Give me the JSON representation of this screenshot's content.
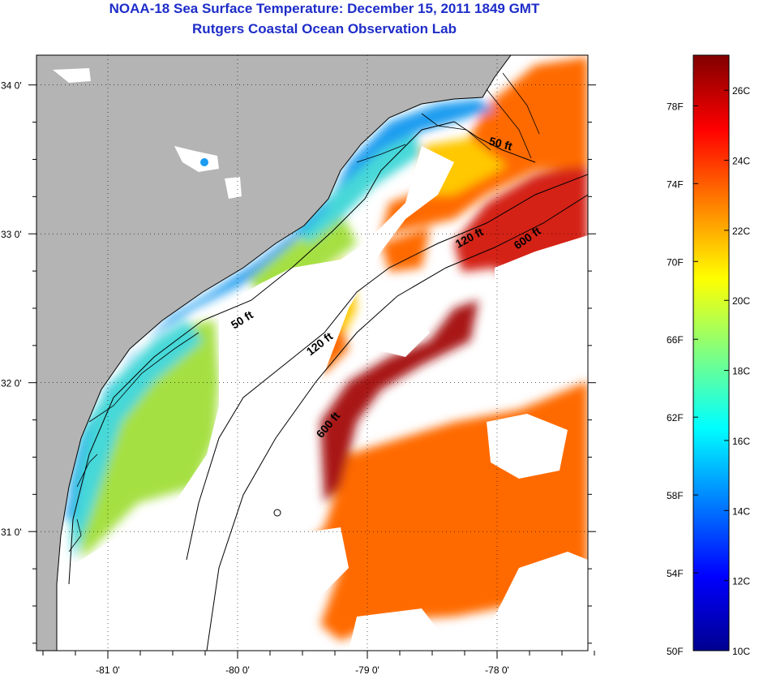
{
  "title": "NOAA-18 Sea Surface Temperature:  December 15, 2011 1849 GMT",
  "subtitle": "Rutgers Coastal Ocean Observation Lab",
  "map": {
    "lon_range": [
      -81.55,
      -77.3
    ],
    "lat_range": [
      30.2,
      34.2
    ],
    "x_ticks": [
      {
        "value": -81,
        "label": "-81 0'"
      },
      {
        "value": -80,
        "label": "-80 0'"
      },
      {
        "value": -79,
        "label": "-79 0'"
      },
      {
        "value": -78,
        "label": "-78 0'"
      }
    ],
    "y_ticks": [
      {
        "value": 34,
        "label": "34 0'"
      },
      {
        "value": 33,
        "label": "33 0'"
      },
      {
        "value": 32,
        "label": "32 0'"
      },
      {
        "value": 31,
        "label": "31 0'"
      }
    ],
    "contour_labels": [
      {
        "text": "50 ft",
        "lon": -77.98,
        "lat": 33.58,
        "rotate": 15
      },
      {
        "text": "50 ft",
        "lon": -79.95,
        "lat": 32.4,
        "rotate": -32
      },
      {
        "text": "120 ft",
        "lon": -78.2,
        "lat": 32.95,
        "rotate": -28
      },
      {
        "text": "120 ft",
        "lon": -79.35,
        "lat": 32.24,
        "rotate": -38
      },
      {
        "text": "600 ft",
        "lon": -77.75,
        "lat": 32.95,
        "rotate": -35
      },
      {
        "text": "600 ft",
        "lon": -79.28,
        "lat": 31.7,
        "rotate": -50
      }
    ],
    "colors": {
      "land": "#b4b4b4",
      "cloud": "#ffffff",
      "near_shore": "#1a9cf0",
      "shelf_mid": "#47d8d8",
      "shelf_outer": "#a5e042",
      "slope": "#ffc800",
      "offshore": "#ff6a00",
      "gulf_stream": "#d42212",
      "gulf_stream_core": "#a81414"
    }
  },
  "colorbar": {
    "range_c": [
      10,
      27
    ],
    "celsius_labels": [
      {
        "value": 26,
        "label": "26C"
      },
      {
        "value": 24,
        "label": "24C"
      },
      {
        "value": 22,
        "label": "22C"
      },
      {
        "value": 20,
        "label": "20C"
      },
      {
        "value": 18,
        "label": "18C"
      },
      {
        "value": 16,
        "label": "16C"
      },
      {
        "value": 14,
        "label": "14C"
      },
      {
        "value": 12,
        "label": "12C"
      },
      {
        "value": 10,
        "label": "10C"
      }
    ],
    "fahrenheit_labels": [
      {
        "value": 78,
        "label": "78F"
      },
      {
        "value": 74,
        "label": "74F"
      },
      {
        "value": 70,
        "label": "70F"
      },
      {
        "value": 66,
        "label": "66F"
      },
      {
        "value": 62,
        "label": "62F"
      },
      {
        "value": 58,
        "label": "58F"
      },
      {
        "value": 54,
        "label": "54F"
      },
      {
        "value": 50,
        "label": "50F"
      }
    ],
    "stops": [
      "#00008f",
      "#0000ff",
      "#0080ff",
      "#00ffff",
      "#80ff80",
      "#ffff00",
      "#ff8000",
      "#ff0000",
      "#800000"
    ]
  }
}
